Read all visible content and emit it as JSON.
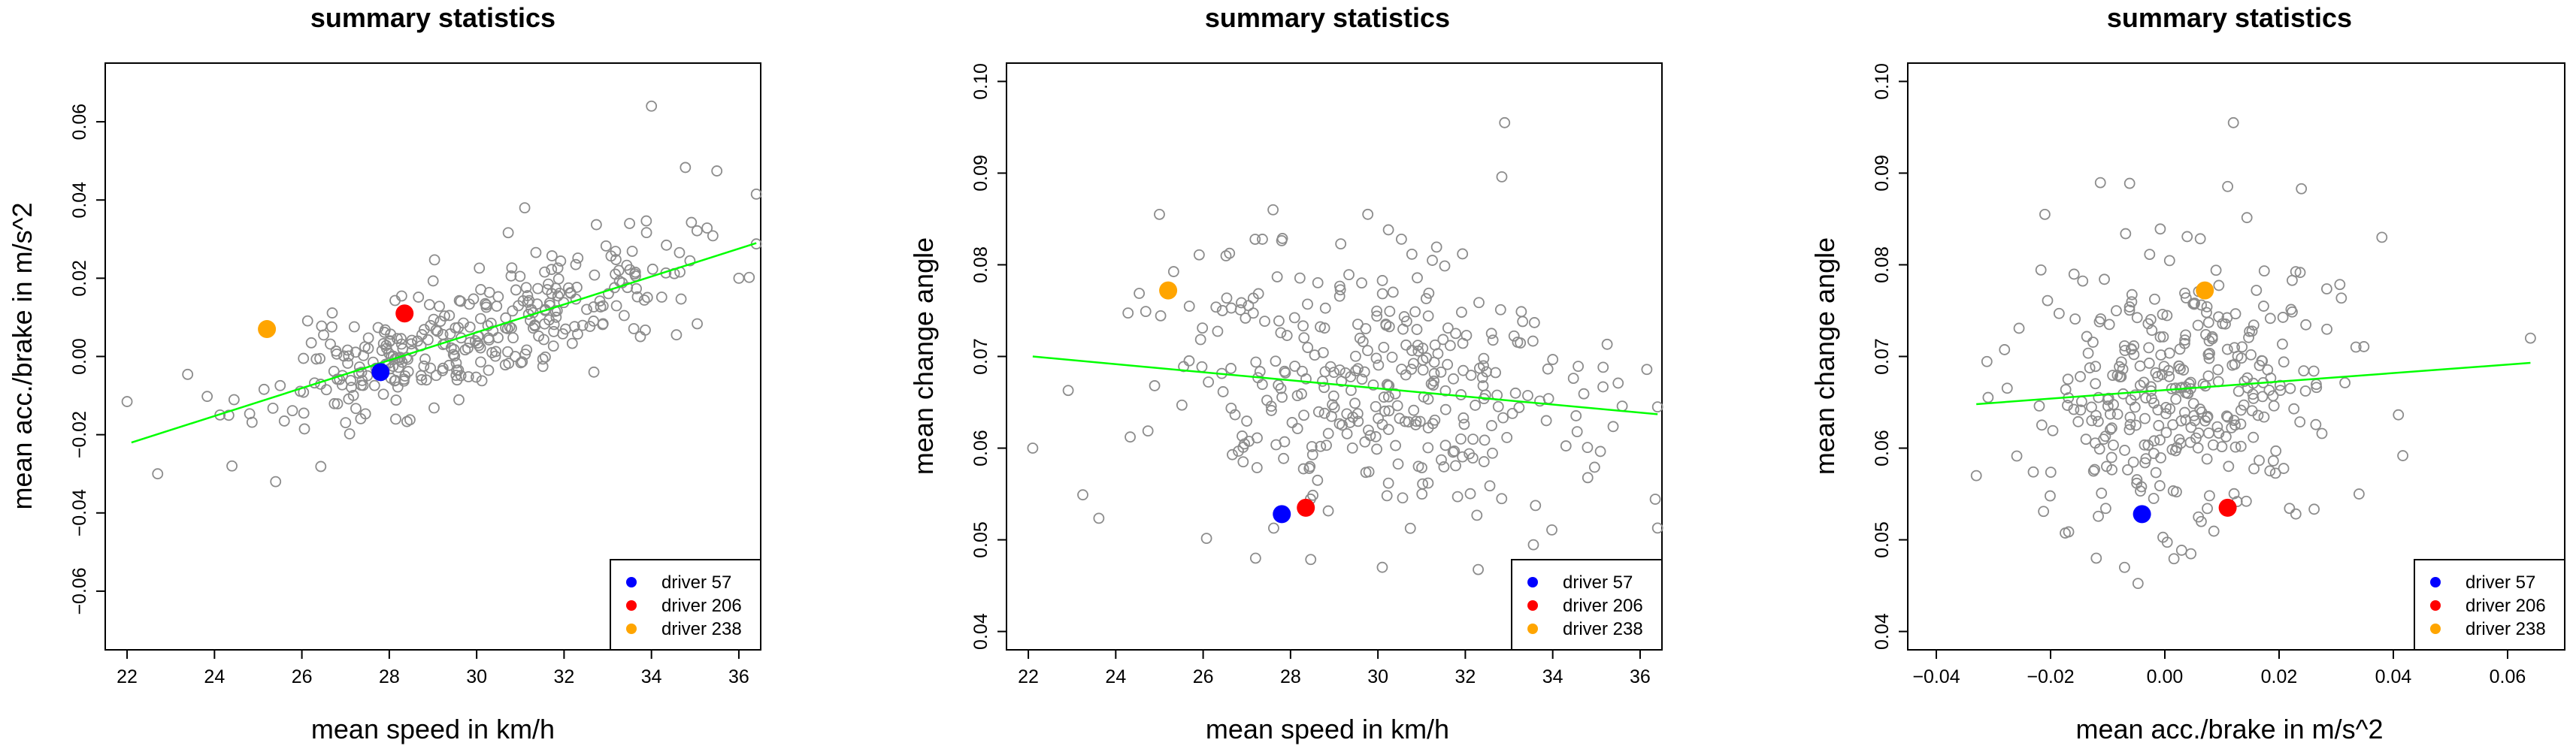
{
  "chart_data": [
    {
      "type": "scatter",
      "title": "summary statistics",
      "xlabel": "mean speed in km/h",
      "ylabel": "mean acc./brake in m/s^2",
      "xlim": [
        21.5,
        36.5
      ],
      "ylim": [
        -0.075,
        0.075
      ],
      "x_ticks": [
        22,
        24,
        26,
        28,
        30,
        32,
        34,
        36
      ],
      "x_tick_labels": [
        "22",
        "24",
        "26",
        "28",
        "30",
        "32",
        "34",
        "36"
      ],
      "y_ticks": [
        -0.06,
        -0.04,
        -0.02,
        0.0,
        0.02,
        0.04,
        0.06
      ],
      "y_tick_labels": [
        "−0.06",
        "−0.04",
        "−0.02",
        "0.00",
        "0.02",
        "0.04",
        "0.06"
      ],
      "cloud": {
        "mean_x": 29.8,
        "sd_x": 2.4,
        "x_min": 22.0,
        "x_max": 36.4,
        "slope": 0.0035,
        "intercept": -0.0993,
        "noise_sd": 0.0075,
        "n": 340,
        "seed": 11
      },
      "outliers": [
        [
          34.0,
          0.064
        ],
        [
          22.7,
          -0.03
        ],
        [
          25.4,
          -0.032
        ],
        [
          33.5,
          0.034
        ],
        [
          36.0,
          0.02
        ],
        [
          24.4,
          -0.028
        ],
        [
          31.1,
          0.038
        ]
      ],
      "fit_line": [
        [
          22.1,
          -0.022
        ],
        [
          36.4,
          0.029
        ]
      ],
      "highlighted": [
        {
          "label": "driver 57",
          "x": 27.8,
          "y": -0.004,
          "color": "#0000ff"
        },
        {
          "label": "driver 206",
          "x": 28.35,
          "y": 0.011,
          "color": "#ff0000"
        },
        {
          "label": "driver 238",
          "x": 25.2,
          "y": 0.007,
          "color": "#ffa500"
        }
      ],
      "legend_position": "bottom-right"
    },
    {
      "type": "scatter",
      "title": "summary statistics",
      "xlabel": "mean speed in km/h",
      "ylabel": "mean change angle",
      "xlim": [
        21.5,
        36.5
      ],
      "ylim": [
        0.038,
        0.102
      ],
      "x_ticks": [
        22,
        24,
        26,
        28,
        30,
        32,
        34,
        36
      ],
      "x_tick_labels": [
        "22",
        "24",
        "26",
        "28",
        "30",
        "32",
        "34",
        "36"
      ],
      "y_ticks": [
        0.04,
        0.05,
        0.06,
        0.07,
        0.08,
        0.09,
        0.1
      ],
      "y_tick_labels": [
        "0.04",
        "0.05",
        "0.06",
        "0.07",
        "0.08",
        "0.09",
        "0.10"
      ],
      "cloud": {
        "mean_x": 29.8,
        "sd_x": 2.4,
        "x_min": 22.0,
        "x_max": 36.4,
        "slope": -0.00045,
        "intercept": 0.0798,
        "noise_sd": 0.0075,
        "n": 340,
        "seed": 23
      },
      "outliers": [
        [
          22.1,
          0.06
        ],
        [
          32.9,
          0.0955
        ],
        [
          27.6,
          0.086
        ],
        [
          25.0,
          0.0855
        ],
        [
          30.1,
          0.047
        ],
        [
          27.2,
          0.048
        ],
        [
          36.4,
          0.0645
        ]
      ],
      "fit_line": [
        [
          22.1,
          0.07
        ],
        [
          36.4,
          0.0637
        ]
      ],
      "highlighted": [
        {
          "label": "driver 57",
          "x": 27.8,
          "y": 0.0528,
          "color": "#0000ff"
        },
        {
          "label": "driver 206",
          "x": 28.35,
          "y": 0.0535,
          "color": "#ff0000"
        },
        {
          "label": "driver 238",
          "x": 25.2,
          "y": 0.0772,
          "color": "#ffa500"
        }
      ],
      "legend_position": "bottom-right"
    },
    {
      "type": "scatter",
      "title": "summary statistics",
      "xlabel": "mean acc./brake in m/s^2",
      "ylabel": "mean change angle",
      "xlim": [
        -0.045,
        0.07
      ],
      "ylim": [
        0.038,
        0.102
      ],
      "x_ticks": [
        -0.04,
        -0.02,
        0.0,
        0.02,
        0.04,
        0.06
      ],
      "x_tick_labels": [
        "−0.04",
        "−0.02",
        "0.00",
        "0.02",
        "0.04",
        "0.06"
      ],
      "y_ticks": [
        0.04,
        0.05,
        0.06,
        0.07,
        0.08,
        0.09,
        0.1
      ],
      "y_tick_labels": [
        "0.04",
        "0.05",
        "0.06",
        "0.07",
        "0.08",
        "0.09",
        "0.10"
      ],
      "cloud": {
        "mean_x": 0.004,
        "sd_x": 0.013,
        "x_min": -0.032,
        "x_max": 0.064,
        "slope": 0.045,
        "intercept": 0.0662,
        "noise_sd": 0.0075,
        "n": 340,
        "seed": 37
      },
      "outliers": [
        [
          0.064,
          0.072
        ],
        [
          -0.033,
          0.057
        ],
        [
          0.012,
          0.0955
        ],
        [
          0.038,
          0.083
        ],
        [
          -0.021,
          0.0855
        ],
        [
          -0.012,
          0.048
        ],
        [
          0.034,
          0.055
        ]
      ],
      "fit_line": [
        [
          -0.033,
          0.0648
        ],
        [
          0.064,
          0.0693
        ]
      ],
      "highlighted": [
        {
          "label": "driver 57",
          "x": -0.004,
          "y": 0.0528,
          "color": "#0000ff"
        },
        {
          "label": "driver 206",
          "x": 0.011,
          "y": 0.0535,
          "color": "#ff0000"
        },
        {
          "label": "driver 238",
          "x": 0.007,
          "y": 0.0772,
          "color": "#ffa500"
        }
      ],
      "legend_position": "bottom-right"
    }
  ],
  "colors": {
    "points": "#8c8c8c",
    "fit_line": "#00ff00",
    "axes": "#000000"
  }
}
